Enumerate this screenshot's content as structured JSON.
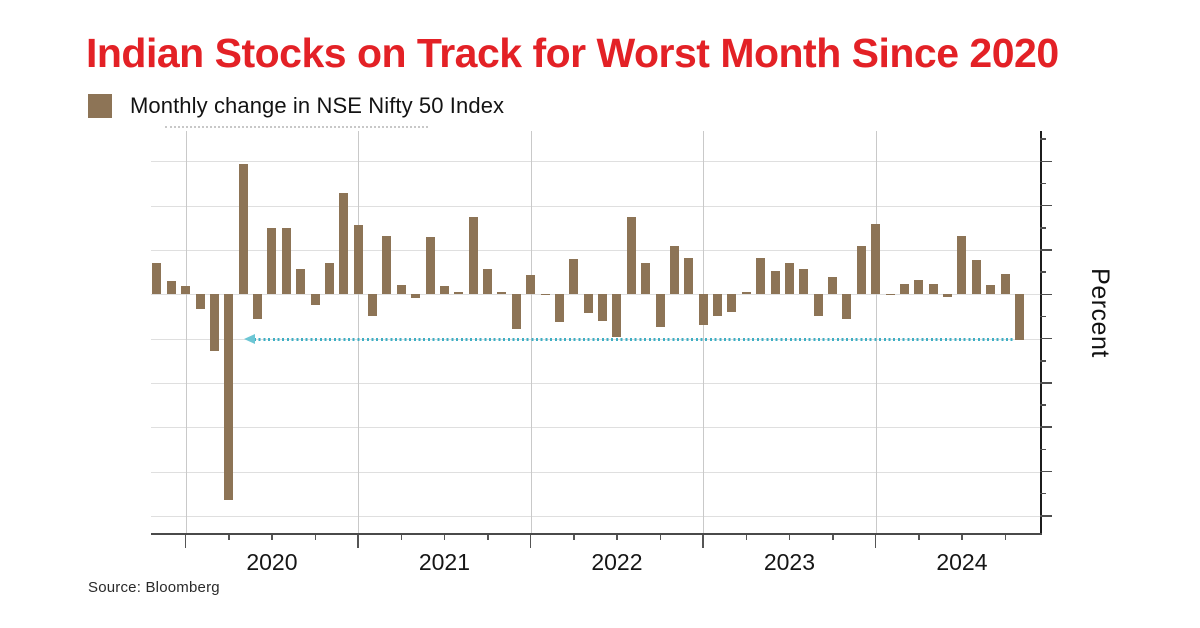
{
  "header": {
    "title": "Indian Stocks on Track for Worst Month Since 2020",
    "title_color": "#e32126"
  },
  "legend": {
    "label": "Monthly change in NSE Nifty 50 Index",
    "swatch_color": "#8d7456"
  },
  "source": {
    "text": "Source: Bloomberg"
  },
  "chart_data": {
    "type": "bar",
    "title": "Monthly change in NSE Nifty 50 Index",
    "xlabel": "",
    "ylabel": "Percent",
    "ylim": [
      -27,
      17.5
    ],
    "grid": "on",
    "gridline_step_pct": 5,
    "minor_tick_step_pct": 2.5,
    "legend_position": "top-left",
    "x_years": [
      "2020",
      "2021",
      "2022",
      "2023",
      "2024"
    ],
    "bar_color": "#8d7456",
    "categories": [
      "Oct 2019",
      "Nov 2019",
      "Dec 2019",
      "Jan 2020",
      "Feb 2020",
      "Mar 2020",
      "Apr 2020",
      "May 2020",
      "Jun 2020",
      "Jul 2020",
      "Aug 2020",
      "Sep 2020",
      "Oct 2020",
      "Nov 2020",
      "Dec 2020",
      "Jan 2021",
      "Feb 2021",
      "Mar 2021",
      "Apr 2021",
      "May 2021",
      "Jun 2021",
      "Jul 2021",
      "Aug 2021",
      "Sep 2021",
      "Oct 2021",
      "Nov 2021",
      "Dec 2021",
      "Jan 2022",
      "Feb 2022",
      "Mar 2022",
      "Apr 2022",
      "May 2022",
      "Jun 2022",
      "Jul 2022",
      "Aug 2022",
      "Sep 2022",
      "Oct 2022",
      "Nov 2022",
      "Dec 2022",
      "Jan 2023",
      "Feb 2023",
      "Mar 2023",
      "Apr 2023",
      "May 2023",
      "Jun 2023",
      "Jul 2023",
      "Aug 2023",
      "Sep 2023",
      "Oct 2023",
      "Nov 2023",
      "Dec 2023",
      "Jan 2024",
      "Feb 2024",
      "Mar 2024",
      "Apr 2024",
      "May 2024",
      "Jun 2024",
      "Jul 2024",
      "Aug 2024",
      "Sep 2024",
      "Oct 2024"
    ],
    "values": [
      3.5,
      1.5,
      0.9,
      -1.7,
      -6.4,
      -23.2,
      14.7,
      -2.8,
      7.5,
      7.5,
      2.8,
      -1.2,
      3.5,
      11.4,
      7.8,
      -2.5,
      6.6,
      1.1,
      -0.4,
      6.5,
      0.9,
      0.3,
      8.7,
      2.8,
      0.3,
      -3.9,
      2.2,
      -0.1,
      -3.1,
      4.0,
      -2.1,
      -3.0,
      -4.8,
      8.7,
      3.5,
      -3.7,
      5.4,
      4.1,
      -3.5,
      -2.4,
      -2.0,
      0.3,
      4.1,
      2.6,
      3.5,
      2.9,
      -2.5,
      2.0,
      -2.8,
      5.5,
      7.9,
      -0.03,
      1.2,
      1.6,
      1.2,
      -0.3,
      6.6,
      3.9,
      1.1,
      2.3,
      -5.2
    ],
    "annotation": {
      "type": "dotted-arrow-line",
      "y_pct": -5.1,
      "from_month": "Apr 2020",
      "to_month": "Oct 2024",
      "direction": "left",
      "color": "#3fafc4"
    }
  }
}
